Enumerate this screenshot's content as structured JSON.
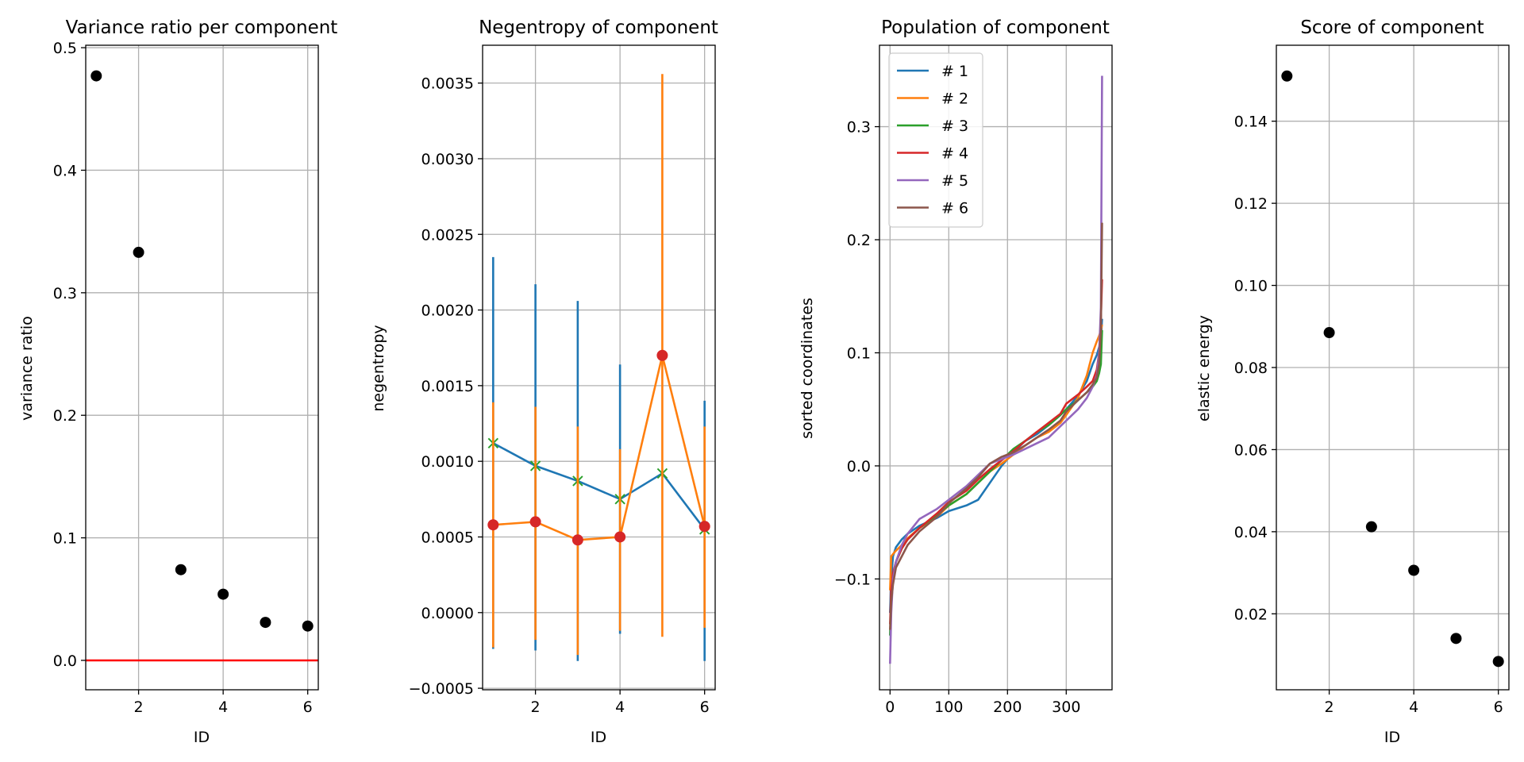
{
  "colors": {
    "c0": "#1f77b4",
    "c1": "#ff7f0e",
    "c2": "#2ca02c",
    "c3": "#d62728",
    "c4": "#9467bd",
    "c5": "#8c564b",
    "black": "#000000",
    "grid": "#b0b0b0"
  },
  "chart_data": [
    {
      "type": "scatter",
      "title": "Variance ratio per component",
      "xlabel": "ID",
      "ylabel": "variance ratio",
      "xlim": [
        0.75,
        6.25
      ],
      "ylim": [
        -0.024,
        0.502
      ],
      "xticks": [
        2,
        4,
        6
      ],
      "yticks": [
        0.0,
        0.1,
        0.2,
        0.3,
        0.4,
        0.5
      ],
      "ytick_labels": [
        "0.0",
        "0.1",
        "0.2",
        "0.3",
        "0.4",
        "0.5"
      ],
      "grid": true,
      "series": [
        {
          "kind": "points",
          "color": "black",
          "x": [
            1,
            2,
            3,
            4,
            5,
            6
          ],
          "y": [
            0.477,
            0.333,
            0.074,
            0.054,
            0.031,
            0.028
          ]
        },
        {
          "kind": "hline",
          "color": "red",
          "y": 0.0
        }
      ]
    },
    {
      "type": "line",
      "title": "Negentropy of component",
      "xlabel": "ID",
      "ylabel": "negentropy",
      "xlim": [
        0.75,
        6.25
      ],
      "ylim": [
        -0.00051,
        0.00375
      ],
      "xticks": [
        2,
        4,
        6
      ],
      "yticks": [
        -0.0005,
        0.0,
        0.0005,
        0.001,
        0.0015,
        0.002,
        0.0025,
        0.003,
        0.0035
      ],
      "ytick_labels": [
        "−0.0005",
        "0.0000",
        "0.0005",
        "0.0010",
        "0.0015",
        "0.0020",
        "0.0025",
        "0.0030",
        "0.0035"
      ],
      "grid": true,
      "series": [
        {
          "kind": "errorline",
          "color": "c0",
          "marker": "x",
          "marker_color": "c2",
          "x": [
            1,
            2,
            3,
            4,
            5,
            6
          ],
          "y": [
            0.00112,
            0.00097,
            0.00087,
            0.00075,
            0.00092,
            0.00055
          ],
          "err_low": [
            -0.00024,
            -0.00025,
            -0.00032,
            -0.00014,
            0.00092,
            -0.00032
          ],
          "err_high": [
            0.00235,
            0.00217,
            0.00206,
            0.00164,
            0.00092,
            0.0014
          ]
        },
        {
          "kind": "errorline",
          "color": "c1",
          "marker": "o",
          "marker_color": "c3",
          "x": [
            1,
            2,
            3,
            4,
            5,
            6
          ],
          "y": [
            0.00058,
            0.0006,
            0.00048,
            0.0005,
            0.0017,
            0.00057
          ],
          "err_low": [
            -0.00023,
            -0.00018,
            -0.00028,
            -0.00012,
            -0.00016,
            -0.0001
          ],
          "err_high": [
            0.00139,
            0.00136,
            0.00123,
            0.00108,
            0.00356,
            0.00123
          ]
        }
      ]
    },
    {
      "type": "line",
      "title": "Population of component",
      "xlabel": "",
      "ylabel": "sorted coordinates",
      "xlim": [
        -18,
        378
      ],
      "ylim": [
        -0.198,
        0.372
      ],
      "xticks": [
        0,
        100,
        200,
        300
      ],
      "yticks": [
        -0.1,
        0.0,
        0.1,
        0.2,
        0.3
      ],
      "ytick_labels": [
        "−0.1",
        "0.0",
        "0.1",
        "0.2",
        "0.3"
      ],
      "grid": true,
      "legend": "upper-left",
      "series": [
        {
          "name": "# 1",
          "color": "c0",
          "x": [
            0,
            2,
            5,
            10,
            20,
            30,
            50,
            80,
            100,
            130,
            150,
            170,
            190,
            210,
            230,
            250,
            270,
            290,
            300,
            320,
            335,
            345,
            352,
            356,
            359,
            361
          ],
          "y": [
            -0.13,
            -0.1,
            -0.08,
            -0.072,
            -0.065,
            -0.06,
            -0.053,
            -0.046,
            -0.04,
            -0.035,
            -0.03,
            -0.015,
            0.0,
            0.012,
            0.022,
            0.028,
            0.036,
            0.045,
            0.05,
            0.062,
            0.075,
            0.09,
            0.098,
            0.105,
            0.11,
            0.13
          ]
        },
        {
          "name": "# 2",
          "color": "c1",
          "x": [
            0,
            2,
            5,
            10,
            20,
            30,
            50,
            80,
            100,
            130,
            150,
            170,
            190,
            210,
            230,
            250,
            270,
            290,
            300,
            320,
            335,
            345,
            352,
            356,
            359,
            361
          ],
          "y": [
            -0.11,
            -0.08,
            -0.078,
            -0.075,
            -0.07,
            -0.064,
            -0.055,
            -0.045,
            -0.035,
            -0.025,
            -0.015,
            -0.005,
            0.002,
            0.01,
            0.018,
            0.025,
            0.03,
            0.038,
            0.045,
            0.06,
            0.08,
            0.1,
            0.11,
            0.115,
            0.12,
            0.125
          ]
        },
        {
          "name": "# 3",
          "color": "c2",
          "x": [
            0,
            2,
            5,
            10,
            20,
            30,
            50,
            80,
            100,
            130,
            150,
            170,
            190,
            210,
            230,
            250,
            270,
            290,
            300,
            320,
            335,
            345,
            352,
            356,
            359,
            361
          ],
          "y": [
            -0.15,
            -0.115,
            -0.1,
            -0.085,
            -0.073,
            -0.065,
            -0.055,
            -0.043,
            -0.035,
            -0.025,
            -0.015,
            -0.005,
            0.005,
            0.015,
            0.022,
            0.03,
            0.036,
            0.045,
            0.05,
            0.058,
            0.065,
            0.07,
            0.075,
            0.082,
            0.09,
            0.12
          ]
        },
        {
          "name": "# 4",
          "color": "c3",
          "x": [
            0,
            2,
            5,
            10,
            20,
            30,
            50,
            80,
            100,
            130,
            150,
            170,
            190,
            210,
            230,
            250,
            270,
            290,
            300,
            320,
            335,
            345,
            352,
            356,
            359,
            361
          ],
          "y": [
            -0.14,
            -0.11,
            -0.095,
            -0.085,
            -0.073,
            -0.065,
            -0.055,
            -0.042,
            -0.032,
            -0.022,
            -0.012,
            -0.003,
            0.005,
            0.013,
            0.022,
            0.03,
            0.038,
            0.046,
            0.055,
            0.063,
            0.07,
            0.075,
            0.085,
            0.1,
            0.13,
            0.165
          ]
        },
        {
          "name": "# 5",
          "color": "c4",
          "x": [
            0,
            2,
            5,
            10,
            20,
            30,
            50,
            80,
            100,
            130,
            150,
            170,
            190,
            210,
            230,
            250,
            270,
            290,
            300,
            320,
            335,
            345,
            352,
            356,
            359,
            361
          ],
          "y": [
            -0.175,
            -0.13,
            -0.1,
            -0.085,
            -0.07,
            -0.06,
            -0.047,
            -0.038,
            -0.03,
            -0.018,
            -0.008,
            0.002,
            0.006,
            0.01,
            0.015,
            0.02,
            0.025,
            0.035,
            0.04,
            0.05,
            0.06,
            0.07,
            0.08,
            0.1,
            0.14,
            0.345
          ]
        },
        {
          "name": "# 6",
          "color": "c5",
          "x": [
            0,
            2,
            5,
            10,
            20,
            30,
            50,
            80,
            100,
            130,
            150,
            170,
            190,
            210,
            230,
            250,
            270,
            290,
            300,
            320,
            335,
            345,
            352,
            356,
            359,
            361
          ],
          "y": [
            -0.145,
            -0.12,
            -0.105,
            -0.09,
            -0.08,
            -0.07,
            -0.058,
            -0.045,
            -0.033,
            -0.02,
            -0.01,
            0.002,
            0.008,
            0.012,
            0.018,
            0.025,
            0.032,
            0.04,
            0.048,
            0.058,
            0.065,
            0.072,
            0.078,
            0.09,
            0.12,
            0.215
          ]
        }
      ]
    },
    {
      "type": "scatter",
      "title": "Score of component",
      "xlabel": "ID",
      "ylabel": "elastic energy",
      "xlim": [
        0.75,
        6.25
      ],
      "ylim": [
        0.0015,
        0.1585
      ],
      "xticks": [
        2,
        4,
        6
      ],
      "yticks": [
        0.02,
        0.04,
        0.06,
        0.08,
        0.1,
        0.12,
        0.14
      ],
      "ytick_labels": [
        "0.02",
        "0.04",
        "0.06",
        "0.08",
        "0.10",
        "0.12",
        "0.14"
      ],
      "grid": true,
      "series": [
        {
          "kind": "points",
          "color": "black",
          "x": [
            1,
            2,
            3,
            4,
            5,
            6
          ],
          "y": [
            0.151,
            0.0885,
            0.0412,
            0.0306,
            0.014,
            0.0084
          ]
        }
      ]
    }
  ]
}
